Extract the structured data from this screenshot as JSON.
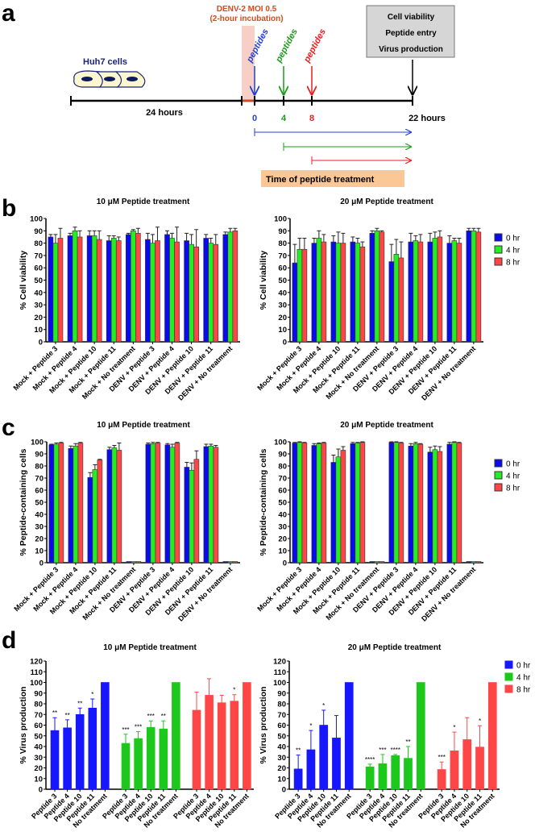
{
  "panel_labels": {
    "a": "a",
    "b": "b",
    "c": "c",
    "d": "d"
  },
  "schematic": {
    "infection_label": "DENV-2 MOI 0.5",
    "incubation_label": "(2-hour incubation)",
    "cells_label": "Huh7 cells",
    "peptides_label": "peptides",
    "readouts": [
      "Cell viability",
      "Peptide entry",
      "Virus production"
    ],
    "duration_label": "24 hours",
    "time_points": [
      "0",
      "4",
      "8",
      "22 hours"
    ],
    "treatment_label": "Time of peptide treatment",
    "colors": {
      "t0": "#1f3fd8",
      "t4": "#1a9a1a",
      "t8": "#ee1c1c",
      "infection": "#d9481c",
      "cells": "#1a237e"
    }
  },
  "legend": [
    "0 hr",
    "4 hr",
    "8 hr"
  ],
  "colors": {
    "bc": [
      "#0a0aee",
      "#22ee22",
      "#ff4646"
    ],
    "d": [
      "#1616ff",
      "#1cc81c",
      "#ff4646"
    ]
  },
  "chart_data": [
    {
      "id": "b_left",
      "type": "bar",
      "title": "10 μM Peptide treatment",
      "ylabel": "% Cell viability",
      "ylim": [
        0,
        100
      ],
      "ytick_step": 10,
      "categories": [
        "Mock + Peptide 3",
        "Mock + Peptide 4",
        "Mock + Peptide 10",
        "Mock + Peptide 11",
        "Mock + No treatment",
        "DENV + Peptide 3",
        "DENV + Peptide 4",
        "DENV + Peptide 10",
        "DENV + Peptide 11",
        "DENV + No treatment"
      ],
      "series": [
        {
          "name": "0 hr",
          "values": [
            85,
            86,
            86,
            82,
            87,
            83,
            87,
            82,
            84,
            87
          ],
          "errors": [
            2,
            2,
            4,
            4,
            1,
            5,
            3,
            6,
            3,
            2
          ]
        },
        {
          "name": "4 hr",
          "values": [
            80,
            90,
            86,
            84,
            90,
            80,
            84,
            79,
            80,
            89
          ],
          "errors": [
            7,
            3,
            4,
            2,
            1,
            7,
            4,
            8,
            4,
            3
          ]
        },
        {
          "name": "8 hr",
          "values": [
            84,
            85,
            83,
            82,
            88,
            82,
            81,
            77,
            79,
            90
          ],
          "errors": [
            8,
            5,
            7,
            3,
            4,
            11,
            12,
            14,
            8,
            2
          ]
        }
      ]
    },
    {
      "id": "b_right",
      "type": "bar",
      "title": "20 μM Peptide treatment",
      "ylabel": "% Cell viability",
      "ylim": [
        0,
        100
      ],
      "ytick_step": 10,
      "legend": "right",
      "categories": [
        "Mock + Peptide 3",
        "Mock + Peptide 4",
        "Mock + Peptide 10",
        "Mock + Peptide 11",
        "Mock + No treatment",
        "DENV + Peptide 3",
        "DENV + Peptide 4",
        "DENV + Peptide 10",
        "DENV + Peptide 11",
        "DENV + No treatment"
      ],
      "series": [
        {
          "name": "0 hr",
          "values": [
            64,
            80,
            81,
            81,
            88,
            65,
            81,
            81,
            80,
            90
          ],
          "errors": [
            15,
            4,
            5,
            4,
            2,
            14,
            7,
            7,
            6,
            2
          ]
        },
        {
          "name": "4 hr",
          "values": [
            75,
            84,
            80,
            80,
            90,
            71,
            82,
            84,
            82,
            90
          ],
          "errors": [
            9,
            6,
            9,
            4,
            2,
            12,
            4,
            5,
            2,
            2
          ]
        },
        {
          "name": "8 hr",
          "values": [
            75,
            81,
            80,
            77,
            89,
            68,
            81,
            85,
            80,
            89
          ],
          "errors": [
            9,
            6,
            8,
            4,
            1,
            13,
            6,
            5,
            4,
            3
          ]
        }
      ]
    },
    {
      "id": "c_left",
      "type": "bar",
      "title": "10 μM Peptide treatment",
      "ylabel": "% Peptide-containing cells",
      "ylim": [
        0,
        100
      ],
      "ytick_step": 10,
      "categories": [
        "Mock + Peptide 3",
        "Mock + Peptide 4",
        "Mock + Peptide 10",
        "Mock + Peptide 11",
        "Mock + No treatment",
        "DENV + Peptide 3",
        "DENV + Peptide 4",
        "DENV + Peptide 10",
        "DENV + Peptide 11",
        "DENV + No treatment"
      ],
      "series": [
        {
          "name": "0 hr",
          "values": [
            97.5,
            94.5,
            70.5,
            93.5,
            1,
            98,
            97.5,
            79,
            96,
            1
          ],
          "errors": [
            0.5,
            2,
            4,
            2,
            0,
            1,
            1,
            4,
            2,
            0
          ]
        },
        {
          "name": "4 hr",
          "values": [
            98,
            96.5,
            77,
            95,
            1,
            98.5,
            95.5,
            76.5,
            96.5,
            1
          ],
          "errors": [
            1,
            2,
            4,
            2,
            0,
            1,
            2.5,
            6,
            1.5,
            0
          ]
        },
        {
          "name": "8 hr",
          "values": [
            99,
            99,
            85,
            93,
            1,
            99,
            99,
            85.5,
            95.5,
            1
          ],
          "errors": [
            0.5,
            0.5,
            0.5,
            6,
            0,
            0.5,
            0.5,
            7,
            1.5,
            0
          ]
        }
      ]
    },
    {
      "id": "c_right",
      "type": "bar",
      "title": "20 μM Peptide treatment",
      "ylabel": "% Peptide-containing cells",
      "ylim": [
        0,
        100
      ],
      "ytick_step": 10,
      "legend": "right",
      "categories": [
        "Mock + Peptide 3",
        "Mock + Peptide 4",
        "Mock + Peptide 10",
        "Mock + Peptide 11",
        "Mock + No treatment",
        "DENV + Peptide 3",
        "DENV + Peptide 4",
        "DENV + Peptide 10",
        "DENV + Peptide 11",
        "DENV + No treatment"
      ],
      "series": [
        {
          "name": "0 hr",
          "values": [
            99,
            97,
            83,
            98.5,
            1,
            99.5,
            96.5,
            91.5,
            98,
            1
          ],
          "errors": [
            0.5,
            1.5,
            6,
            1,
            0,
            0.5,
            2,
            4,
            1.5,
            0
          ]
        },
        {
          "name": "4 hr",
          "values": [
            99.5,
            98.5,
            87.5,
            99,
            1,
            99.5,
            98.5,
            93.5,
            99.5,
            1
          ],
          "errors": [
            0.5,
            0.5,
            6.5,
            0.5,
            0,
            0.5,
            1,
            3,
            0.5,
            0
          ]
        },
        {
          "name": "8 hr",
          "values": [
            99,
            99,
            93,
            99.5,
            1,
            99,
            98,
            92,
            99,
            1
          ],
          "errors": [
            0.5,
            0.5,
            3,
            0.5,
            0,
            0.5,
            0.5,
            4,
            0.5,
            0
          ]
        }
      ]
    },
    {
      "id": "d_left",
      "type": "bar",
      "title": "10 μM Peptide treatment",
      "ylabel": "% Virus production",
      "ylim": [
        0,
        120
      ],
      "ytick_step": 10,
      "categories": [
        "Peptide 3",
        "Peptide 4",
        "Peptide 10",
        "Peptide 11",
        "No treatment"
      ],
      "series": [
        {
          "name": "0 hr",
          "values": [
            55,
            57.5,
            70,
            76,
            100
          ],
          "errors": [
            12,
            7.5,
            6,
            8.5,
            0
          ],
          "significance": [
            "**",
            "**",
            "**",
            "*",
            ""
          ]
        },
        {
          "name": "4 hr",
          "values": [
            43,
            47.5,
            58,
            56.5,
            100
          ],
          "errors": [
            8.5,
            6.5,
            6,
            7.5,
            0
          ],
          "significance": [
            "***",
            "***",
            "***",
            "**",
            ""
          ]
        },
        {
          "name": "8 hr",
          "values": [
            74,
            88,
            81,
            82.5,
            100
          ],
          "errors": [
            17,
            15.5,
            7,
            6,
            0
          ],
          "significance": [
            "",
            "",
            "",
            "*",
            ""
          ]
        }
      ]
    },
    {
      "id": "d_right",
      "type": "bar",
      "title": "20 μM Peptide treatment",
      "ylabel": "% Virus production",
      "ylim": [
        0,
        120
      ],
      "ytick_step": 10,
      "legend": "right",
      "categories": [
        "Peptide 3",
        "Peptide 4",
        "Peptide 10",
        "Peptide 11",
        "No treatment"
      ],
      "series": [
        {
          "name": "0 hr",
          "values": [
            19,
            37,
            60,
            48,
            100
          ],
          "errors": [
            13,
            18,
            14,
            21,
            0
          ],
          "significance": [
            "**",
            "*",
            "*",
            "",
            ""
          ]
        },
        {
          "name": "4 hr",
          "values": [
            21,
            24,
            31.5,
            29,
            100
          ],
          "errors": [
            2.5,
            8.5,
            1,
            11,
            0
          ],
          "significance": [
            "****",
            "***",
            "****",
            "**",
            ""
          ]
        },
        {
          "name": "8 hr",
          "values": [
            18.5,
            36,
            46.5,
            39.5,
            100
          ],
          "errors": [
            7,
            17.5,
            20.5,
            20,
            0
          ],
          "significance": [
            "***",
            "*",
            "",
            "*",
            ""
          ]
        }
      ]
    }
  ]
}
